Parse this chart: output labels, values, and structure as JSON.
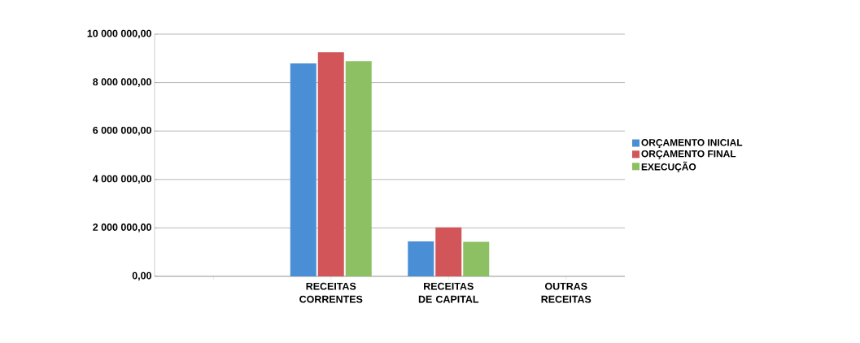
{
  "chart_data": {
    "type": "bar",
    "categories": [
      null,
      "RECEITAS CORRENTES",
      "RECEITAS DE CAPITAL",
      "OUTRAS RECEITAS"
    ],
    "series": [
      {
        "name": "ORÇAMENTO INICIAL",
        "color": "#4a8fd6",
        "values": [
          null,
          8790000,
          1440000,
          0
        ]
      },
      {
        "name": "ORÇAMENTO FINAL",
        "color": "#d2555a",
        "values": [
          null,
          9250000,
          2020000,
          0
        ]
      },
      {
        "name": "EXECUÇÃO",
        "color": "#8cc063",
        "values": [
          null,
          8880000,
          1430000,
          0
        ]
      }
    ],
    "ylim": [
      0,
      10000000
    ],
    "yticks": [
      {
        "value": 0,
        "label": "0,00"
      },
      {
        "value": 2000000,
        "label": "2 000 000,00"
      },
      {
        "value": 4000000,
        "label": "4 000 000,00"
      },
      {
        "value": 6000000,
        "label": "6 000 000,00"
      },
      {
        "value": 8000000,
        "label": "8 000 000,00"
      },
      {
        "value": 10000000,
        "label": "10 000 000,00"
      }
    ],
    "grid": "y",
    "legend": "right"
  }
}
